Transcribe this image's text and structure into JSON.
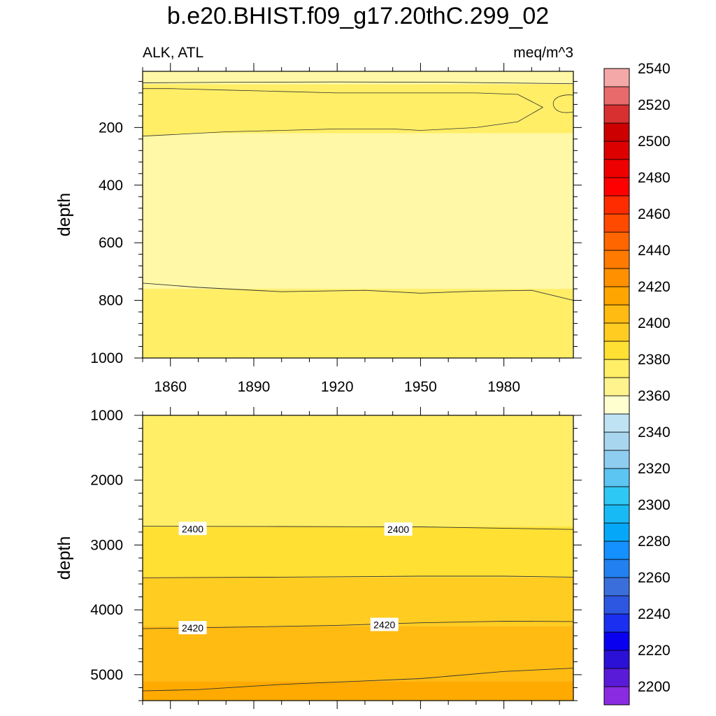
{
  "title": "b.e20.BHIST.f09_g17.20thC.299_02",
  "left_string": "ALK, ATL",
  "right_string": "meq/m^3",
  "chart_data": [
    {
      "type": "contour",
      "panel": "top",
      "xlabel": "",
      "ylabel": "depth",
      "xlim": [
        1850,
        2005
      ],
      "ylim": [
        1000,
        5
      ],
      "x_ticks": [
        1860,
        1890,
        1920,
        1950,
        1980
      ],
      "y_ticks": [
        200,
        400,
        600,
        800,
        1000
      ],
      "regions": [
        {
          "from_depth": 5,
          "to_depth": 50,
          "value_range": [
            2380,
            2390
          ],
          "color": "#fff8a6"
        },
        {
          "from_depth": 50,
          "to_depth": 220,
          "value_range": [
            2390,
            2400
          ],
          "color": "#ffee66"
        },
        {
          "from_depth": 220,
          "to_depth": 760,
          "value_range": [
            2380,
            2390
          ],
          "color": "#fff8a6"
        },
        {
          "from_depth": 760,
          "to_depth": 1000,
          "value_range": [
            2390,
            2400
          ],
          "color": "#ffee66"
        }
      ],
      "contour_lines": [
        {
          "level": 2390,
          "depths": [
            [
              1850,
              45
            ],
            [
              1880,
              43
            ],
            [
              1920,
              42
            ],
            [
              1960,
              43
            ],
            [
              2005,
              48
            ]
          ]
        },
        {
          "level": 2390,
          "depths": [
            [
              1850,
              230
            ],
            [
              1860,
              225
            ],
            [
              1880,
              215
            ],
            [
              1900,
              210
            ],
            [
              1920,
              205
            ],
            [
              1940,
              205
            ],
            [
              1950,
              210
            ],
            [
              1970,
              200
            ],
            [
              1985,
              180
            ],
            [
              1994,
              130
            ],
            [
              1985,
              85
            ],
            [
              1970,
              80
            ],
            [
              1950,
              80
            ],
            [
              1920,
              80
            ],
            [
              1900,
              75
            ],
            [
              1880,
              70
            ],
            [
              1860,
              65
            ],
            [
              1850,
              65
            ]
          ]
        },
        {
          "level": 2390,
          "depths": [
            [
              1850,
              740
            ],
            [
              1870,
              755
            ],
            [
              1900,
              770
            ],
            [
              1930,
              765
            ],
            [
              1950,
              775
            ],
            [
              1970,
              768
            ],
            [
              1990,
              765
            ],
            [
              2005,
              800
            ]
          ]
        }
      ]
    },
    {
      "type": "contour",
      "panel": "bottom",
      "xlabel": "",
      "ylabel": "depth",
      "xlim": [
        1850,
        2005
      ],
      "ylim": [
        5400,
        1000
      ],
      "y_ticks": [
        1000,
        2000,
        3000,
        4000,
        5000
      ],
      "regions": [
        {
          "from_depth": 1000,
          "to_depth": 2720,
          "value_range": [
            2390,
            2400
          ],
          "color": "#ffee66"
        },
        {
          "from_depth": 2720,
          "to_depth": 3500,
          "value_range": [
            2400,
            2410
          ],
          "color": "#ffe033"
        },
        {
          "from_depth": 3500,
          "to_depth": 4250,
          "value_range": [
            2410,
            2420
          ],
          "color": "#ffcc22"
        },
        {
          "from_depth": 4250,
          "to_depth": 5100,
          "value_range": [
            2420,
            2430
          ],
          "color": "#ffbb11"
        },
        {
          "from_depth": 5100,
          "to_depth": 5400,
          "value_range": [
            2430,
            2440
          ],
          "color": "#ffaa00"
        }
      ],
      "contour_lines": [
        {
          "level": 2400,
          "labeled": true,
          "depths": [
            [
              1850,
              2710
            ],
            [
              1900,
              2715
            ],
            [
              1950,
              2720
            ],
            [
              2005,
              2760
            ]
          ]
        },
        {
          "level": 2410,
          "labeled": false,
          "depths": [
            [
              1850,
              3505
            ],
            [
              1900,
              3495
            ],
            [
              1950,
              3480
            ],
            [
              1980,
              3480
            ],
            [
              2005,
              3495
            ]
          ]
        },
        {
          "level": 2420,
          "labeled": true,
          "depths": [
            [
              1850,
              4290
            ],
            [
              1880,
              4270
            ],
            [
              1920,
              4240
            ],
            [
              1950,
              4200
            ],
            [
              1980,
              4175
            ],
            [
              2005,
              4180
            ]
          ]
        },
        {
          "level": 2430,
          "labeled": false,
          "depths": [
            [
              1850,
              5250
            ],
            [
              1870,
              5230
            ],
            [
              1900,
              5150
            ],
            [
              1950,
              5060
            ],
            [
              1980,
              4950
            ],
            [
              2005,
              4900
            ]
          ]
        }
      ],
      "contour_labels": [
        {
          "text": "2400",
          "x": 1868,
          "depth": 2750
        },
        {
          "text": "2400",
          "x": 1942,
          "depth": 2760
        },
        {
          "text": "2420",
          "x": 1868,
          "depth": 4280
        },
        {
          "text": "2420",
          "x": 1937,
          "depth": 4230
        }
      ]
    },
    {
      "type": "colorbar",
      "labels": [
        "2200",
        "2220",
        "2240",
        "2260",
        "2280",
        "2300",
        "2320",
        "2340",
        "2360",
        "2380",
        "2400",
        "2420",
        "2440",
        "2460",
        "2480",
        "2500",
        "2520",
        "2540"
      ],
      "colors": [
        "#8a2be2",
        "#5a1bd8",
        "#2b10d6",
        "#0a00f0",
        "#1a2ff0",
        "#2d57e0",
        "#3a6edb",
        "#2280f0",
        "#1490ff",
        "#05a8f8",
        "#18baf5",
        "#2ec8f5",
        "#5cc5f2",
        "#8ecdf0",
        "#a8d6ef",
        "#bfe3f3",
        "#ffffd0",
        "#fff38e",
        "#ffee66",
        "#ffe033",
        "#ffcc22",
        "#ffbb11",
        "#ffa500",
        "#ff9000",
        "#ff7a00",
        "#ff6600",
        "#ff4a00",
        "#ff2c00",
        "#ff0000",
        "#ee0000",
        "#dd0000",
        "#cc0000",
        "#d83030",
        "#e86a6a",
        "#f5a8a8"
      ]
    }
  ]
}
